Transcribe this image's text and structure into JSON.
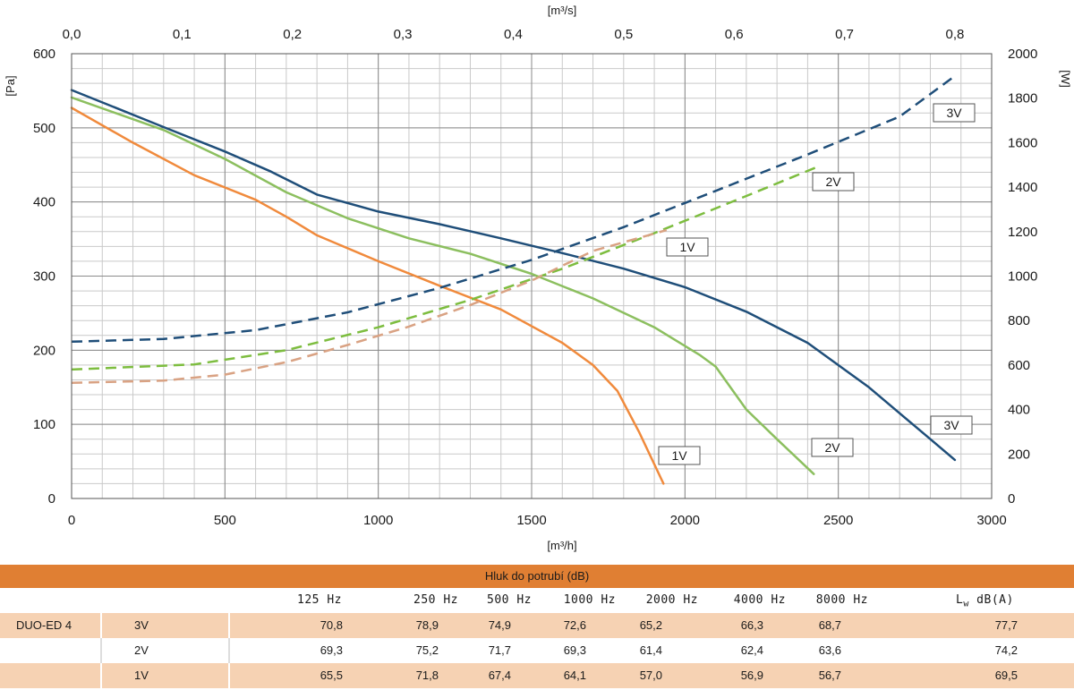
{
  "chart_data": {
    "type": "line",
    "x": {
      "range": [
        0,
        3000
      ],
      "ticks": [
        0,
        500,
        1000,
        1500,
        2000,
        2500,
        3000
      ],
      "label": "[m³/h]"
    },
    "x2": {
      "range": [
        0,
        0.8333
      ],
      "ticks": [
        0.0,
        0.1,
        0.2,
        0.3,
        0.4,
        0.5,
        0.6,
        0.7,
        0.8
      ],
      "tick_labels": [
        "0,0",
        "0,1",
        "0,2",
        "0,3",
        "0,4",
        "0,5",
        "0,6",
        "0,7",
        "0,8"
      ],
      "label": "[m³/s]"
    },
    "y": {
      "range": [
        0,
        600
      ],
      "ticks": [
        0,
        100,
        200,
        300,
        400,
        500,
        600
      ],
      "label": "[Pa]"
    },
    "y2": {
      "range": [
        0,
        2000
      ],
      "ticks": [
        0,
        200,
        400,
        600,
        800,
        1000,
        1200,
        1400,
        1600,
        1800,
        2000
      ],
      "label": "[W]"
    },
    "grid": true,
    "series": [
      {
        "name": "3V",
        "kind": "pressure",
        "axis": "y",
        "color": "#1f4e79",
        "dashed": false,
        "points": [
          [
            0,
            551
          ],
          [
            300,
            501
          ],
          [
            500,
            468
          ],
          [
            650,
            441
          ],
          [
            800,
            410
          ],
          [
            1000,
            387
          ],
          [
            1200,
            370
          ],
          [
            1400,
            351
          ],
          [
            1600,
            331
          ],
          [
            1800,
            310
          ],
          [
            2000,
            285
          ],
          [
            2200,
            252
          ],
          [
            2400,
            210
          ],
          [
            2600,
            150
          ],
          [
            2800,
            80
          ],
          [
            2880,
            52
          ]
        ]
      },
      {
        "name": "2V",
        "kind": "pressure",
        "axis": "y",
        "color": "#8cbf5f",
        "dashed": false,
        "points": [
          [
            0,
            541
          ],
          [
            300,
            497
          ],
          [
            500,
            458
          ],
          [
            700,
            413
          ],
          [
            900,
            378
          ],
          [
            1100,
            351
          ],
          [
            1300,
            330
          ],
          [
            1500,
            303
          ],
          [
            1700,
            270
          ],
          [
            1900,
            231
          ],
          [
            2050,
            193
          ],
          [
            2100,
            178
          ],
          [
            2200,
            120
          ],
          [
            2300,
            80
          ],
          [
            2420,
            33
          ]
        ]
      },
      {
        "name": "1V",
        "kind": "pressure",
        "axis": "y",
        "color": "#f08a3c",
        "dashed": false,
        "points": [
          [
            0,
            527
          ],
          [
            200,
            480
          ],
          [
            400,
            436
          ],
          [
            600,
            403
          ],
          [
            700,
            380
          ],
          [
            800,
            355
          ],
          [
            1000,
            320
          ],
          [
            1200,
            287
          ],
          [
            1400,
            255
          ],
          [
            1600,
            210
          ],
          [
            1700,
            180
          ],
          [
            1780,
            145
          ],
          [
            1850,
            90
          ],
          [
            1930,
            20
          ]
        ]
      },
      {
        "name": "3V",
        "kind": "power",
        "axis": "y2",
        "color": "#1f4e79",
        "dashed": true,
        "points": [
          [
            0,
            705
          ],
          [
            300,
            717
          ],
          [
            600,
            757
          ],
          [
            900,
            837
          ],
          [
            1200,
            947
          ],
          [
            1500,
            1073
          ],
          [
            1800,
            1220
          ],
          [
            2100,
            1383
          ],
          [
            2400,
            1547
          ],
          [
            2700,
            1717
          ],
          [
            2880,
            1900
          ]
        ]
      },
      {
        "name": "2V",
        "kind": "power",
        "axis": "y2",
        "color": "#7dbd3f",
        "dashed": true,
        "points": [
          [
            0,
            580
          ],
          [
            400,
            603
          ],
          [
            700,
            667
          ],
          [
            1000,
            770
          ],
          [
            1300,
            893
          ],
          [
            1600,
            1033
          ],
          [
            1900,
            1193
          ],
          [
            2200,
            1360
          ],
          [
            2430,
            1490
          ]
        ]
      },
      {
        "name": "1V",
        "kind": "power",
        "axis": "y2",
        "color": "#d9a283",
        "dashed": true,
        "points": [
          [
            0,
            520
          ],
          [
            300,
            530
          ],
          [
            500,
            557
          ],
          [
            700,
            613
          ],
          [
            900,
            690
          ],
          [
            1100,
            773
          ],
          [
            1300,
            870
          ],
          [
            1500,
            980
          ],
          [
            1700,
            1113
          ],
          [
            1940,
            1207
          ]
        ]
      }
    ]
  },
  "curve_labels": {
    "p3": "3V",
    "p2": "2V",
    "p1": "1V",
    "w3": "3V",
    "w2": "2V",
    "w1": "1V"
  },
  "noise_table": {
    "title": "Hluk do potrubí (dB)",
    "headers": [
      "125 Hz",
      "250 Hz",
      "500 Hz",
      "1000 Hz",
      "2000 Hz",
      "4000 Hz",
      "8000 Hz"
    ],
    "lw_symbol": "L",
    "lw_sub": "w",
    "lw_rest": " dB(A)",
    "model": "DUO-ED 4",
    "rows": [
      {
        "speed": "3V",
        "values": [
          "70,8",
          "78,9",
          "74,9",
          "72,6",
          "65,2",
          "66,3",
          "68,7"
        ],
        "lw": "77,7"
      },
      {
        "speed": "2V",
        "values": [
          "69,3",
          "75,2",
          "71,7",
          "69,3",
          "61,4",
          "62,4",
          "63,6"
        ],
        "lw": "74,2"
      },
      {
        "speed": "1V",
        "values": [
          "65,5",
          "71,8",
          "67,4",
          "64,1",
          "57,0",
          "56,9",
          "56,7"
        ],
        "lw": "69,5"
      }
    ]
  }
}
